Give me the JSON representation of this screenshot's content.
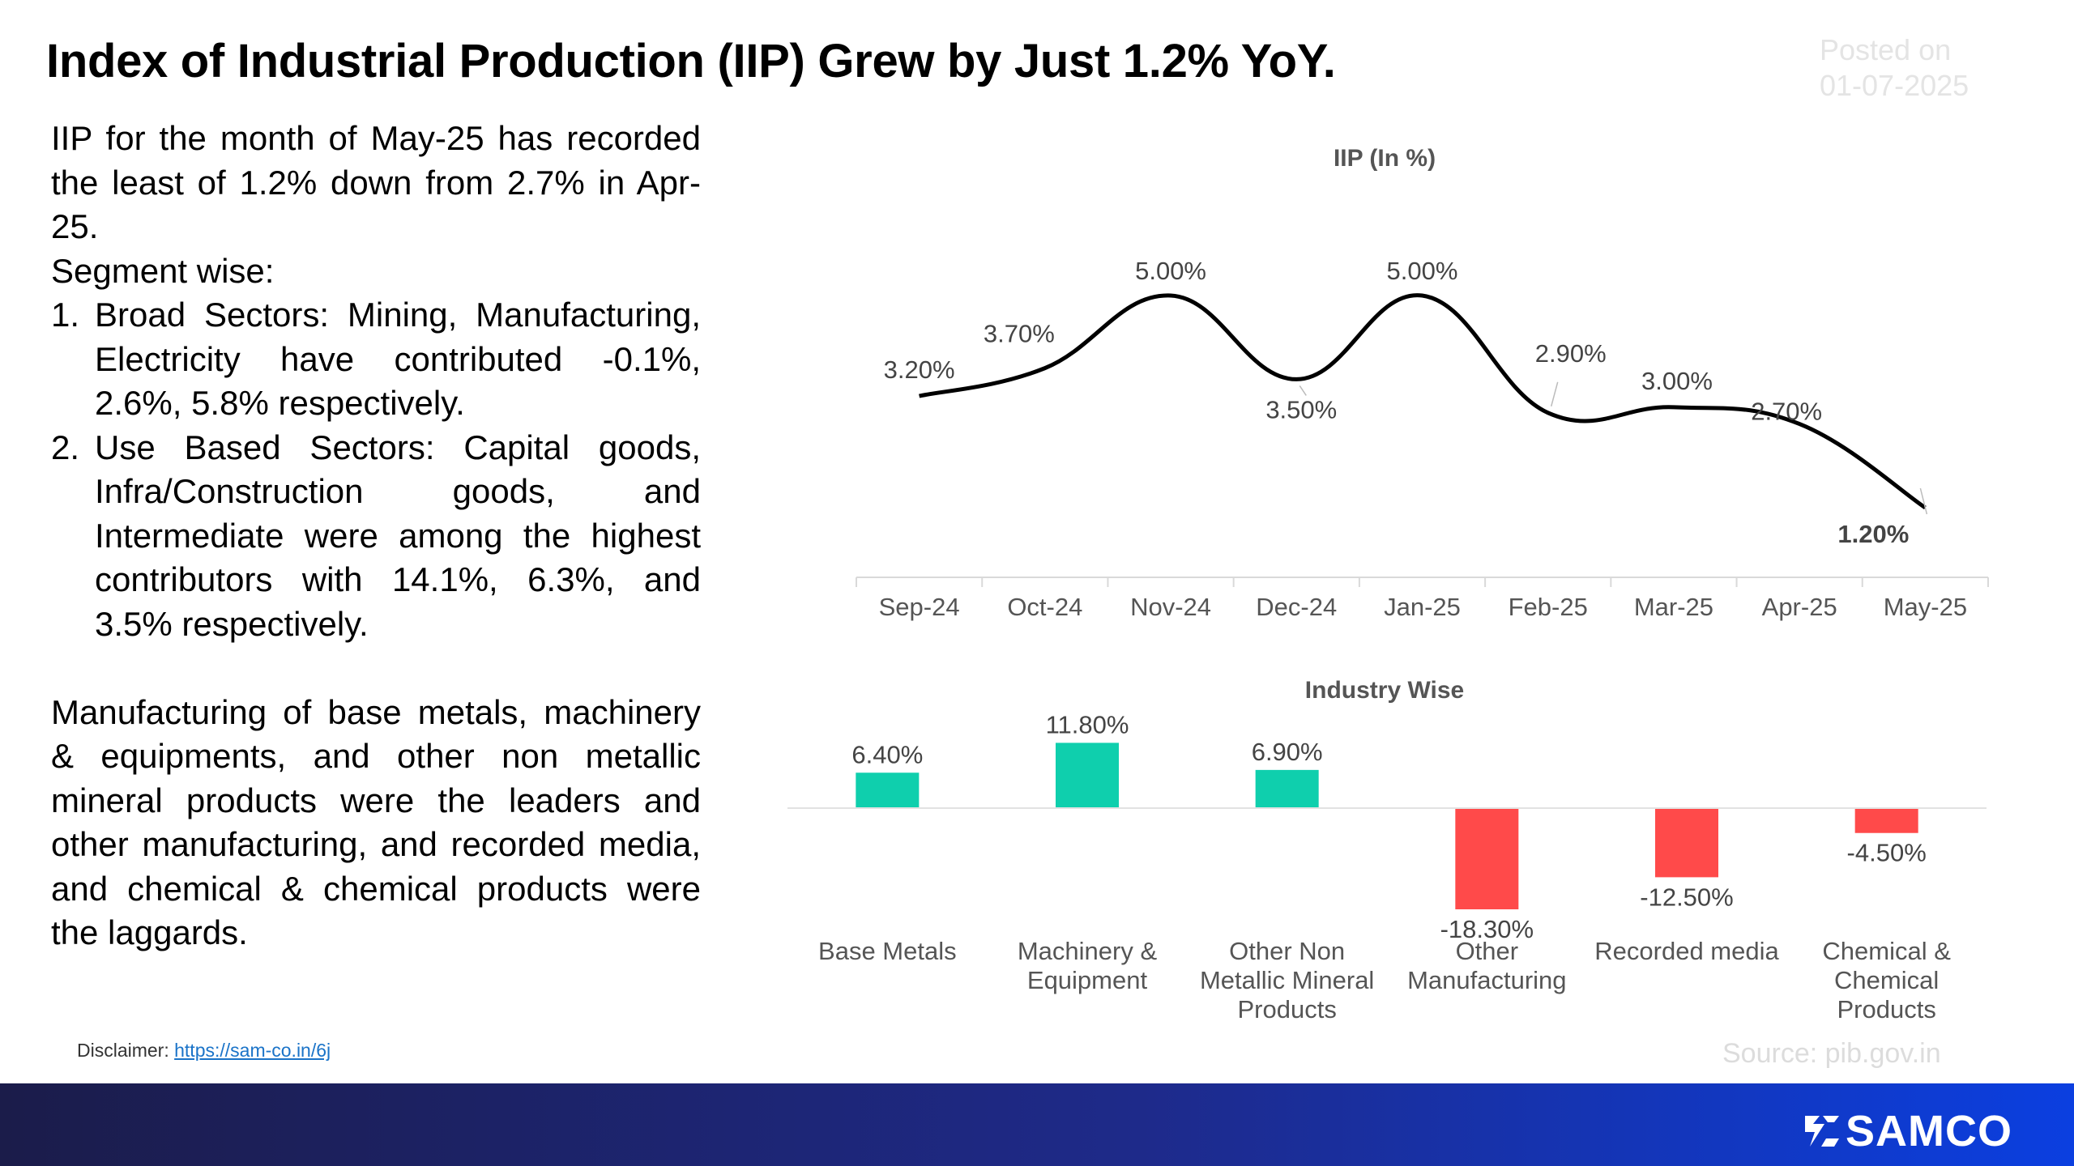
{
  "header": {
    "title": "Index of Industrial Production (IIP) Grew by Just 1.2% YoY.",
    "posted_label": "Posted on",
    "posted_date": "01-07-2025"
  },
  "body": {
    "intro": "IIP for the month of May-25 has recorded the least of 1.2% down from 2.7% in Apr-25.",
    "segment_heading": "Segment wise:",
    "points": [
      {
        "num": "1.",
        "text": "Broad Sectors: Mining, Manufacturing, Electricity have contributed -0.1%, 2.6%, 5.8% respectively."
      },
      {
        "num": "2.",
        "text": "Use Based Sectors: Capital goods, Infra/Construction goods, and Intermediate were among the highest contributors with 14.1%, 6.3%, and 3.5% respectively."
      }
    ],
    "conclusion": "Manufacturing of base metals, machinery & equipments, and other non metallic mineral products were the leaders and other manufacturing, and recorded media, and chemical & chemical products were the laggards."
  },
  "footer": {
    "disclaimer_label": "Disclaimer:",
    "disclaimer_link": "https://sam-co.in/6j",
    "source": "Source: pib.gov.in",
    "brand": "SAMCO"
  },
  "colors": {
    "positive_bar": "#0fcfad",
    "negative_bar": "#ff4a4a",
    "line": "#000000"
  },
  "chart_data": [
    {
      "type": "line",
      "title": "IIP (In %)",
      "categories": [
        "Sep-24",
        "Oct-24",
        "Nov-24",
        "Dec-24",
        "Jan-25",
        "Feb-25",
        "Mar-25",
        "Apr-25",
        "May-25"
      ],
      "values": [
        3.2,
        3.7,
        5.0,
        3.5,
        5.0,
        2.9,
        3.0,
        2.7,
        1.2
      ],
      "labels": [
        "3.20%",
        "3.70%",
        "5.00%",
        "3.50%",
        "5.00%",
        "2.90%",
        "3.00%",
        "2.70%",
        "1.20%"
      ],
      "smooth": true,
      "grid": false,
      "legend": "none"
    },
    {
      "type": "bar",
      "title": "Industry Wise",
      "categories": [
        "Base Metals",
        "Machinery & Equipment",
        "Other Non Metallic Mineral Products",
        "Other Manufacturing",
        "Recorded media",
        "Chemical & Chemical Products"
      ],
      "values": [
        6.4,
        11.8,
        6.9,
        -18.3,
        -12.5,
        -4.5
      ],
      "labels": [
        "6.40%",
        "11.80%",
        "6.90%",
        "-18.30%",
        "-12.50%",
        "-4.50%"
      ],
      "grid": false,
      "legend": "none"
    }
  ]
}
